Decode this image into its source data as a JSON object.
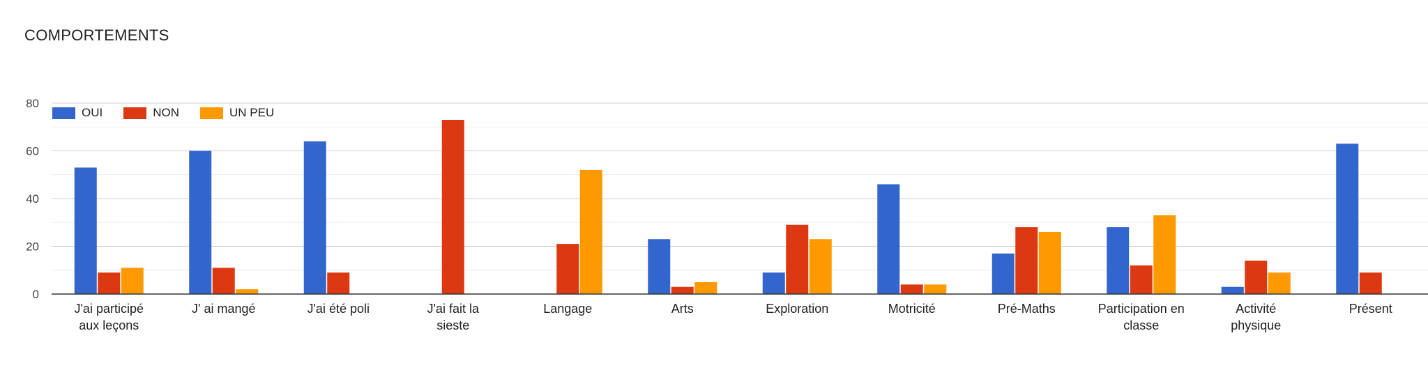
{
  "chart_data": {
    "type": "bar",
    "title": "COMPORTEMENTS",
    "xlabel": "",
    "ylabel": "",
    "ylim": [
      0,
      80
    ],
    "yticks": [
      0,
      20,
      40,
      60,
      80
    ],
    "grid": true,
    "legend_position": "top-left",
    "categories": [
      "J'ai participé aux leçons",
      "J' ai mangé",
      "J'ai été poli",
      "J'ai fait la sieste",
      "Langage",
      "Arts",
      "Exploration",
      "Motricité",
      "Pré-Maths",
      "Participation en classe",
      "Activité physique",
      "Présent"
    ],
    "series": [
      {
        "name": "OUI",
        "color": "#3366cc",
        "values": [
          53,
          60,
          64,
          0,
          0,
          23,
          9,
          46,
          17,
          28,
          3,
          63
        ]
      },
      {
        "name": "NON",
        "color": "#dc3912",
        "values": [
          9,
          11,
          9,
          73,
          21,
          3,
          29,
          4,
          28,
          12,
          14,
          9
        ]
      },
      {
        "name": "UN PEU",
        "color": "#ff9900",
        "values": [
          11,
          2,
          0,
          0,
          52,
          5,
          23,
          4,
          26,
          33,
          9,
          0
        ]
      }
    ]
  }
}
